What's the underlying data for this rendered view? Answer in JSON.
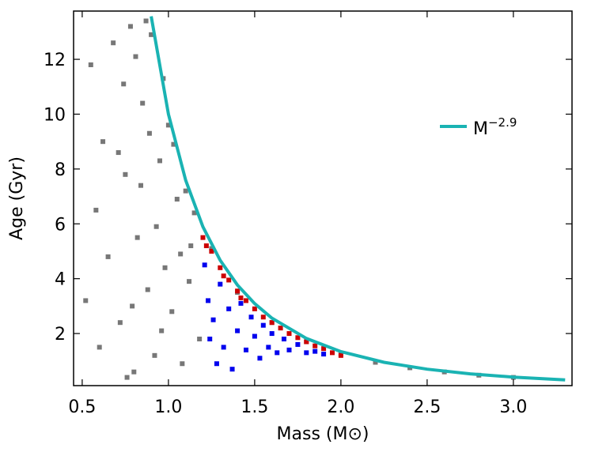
{
  "chart_data": {
    "type": "scatter",
    "xlabel": "Mass (M⊙)",
    "ylabel": "Age (Gyr)",
    "xlim": [
      0.45,
      3.34
    ],
    "ylim": [
      0.1,
      13.76
    ],
    "xticks": [
      {
        "value": 0.5,
        "label": "0.5"
      },
      {
        "value": 1.0,
        "label": "1.0"
      },
      {
        "value": 1.5,
        "label": "1.5"
      },
      {
        "value": 2.0,
        "label": "2.0"
      },
      {
        "value": 2.5,
        "label": "2.5"
      },
      {
        "value": 3.0,
        "label": "3.0"
      }
    ],
    "yticks": [
      2,
      4,
      6,
      8,
      10,
      12
    ],
    "series": [
      {
        "style": "markers",
        "color": "#777777",
        "x": [
          0.52,
          0.55,
          0.58,
          0.6,
          0.62,
          0.65,
          0.68,
          0.72,
          0.75,
          0.78,
          0.8,
          0.82,
          0.85,
          0.88,
          0.9,
          0.92,
          0.95,
          0.98,
          1.0,
          1.02,
          1.05,
          1.08,
          1.1,
          1.12,
          1.15,
          1.18,
          0.74,
          0.79,
          0.84,
          0.87,
          0.93,
          0.97,
          1.03,
          1.07,
          1.13,
          0.71,
          0.76,
          0.81,
          0.89,
          0.96,
          1.25,
          1.4,
          1.6,
          1.8,
          2.0,
          2.2,
          2.4,
          2.6,
          2.8,
          3.0
        ],
        "y": [
          3.2,
          11.8,
          6.5,
          1.5,
          9.0,
          4.8,
          12.6,
          2.4,
          7.8,
          13.2,
          0.6,
          5.5,
          10.4,
          3.6,
          12.9,
          1.2,
          8.3,
          4.4,
          9.6,
          2.8,
          6.9,
          0.9,
          7.2,
          3.9,
          6.4,
          1.8,
          11.1,
          3.0,
          7.4,
          13.4,
          5.9,
          11.3,
          8.9,
          4.9,
          5.2,
          8.6,
          0.4,
          12.1,
          9.3,
          2.1,
          5.1,
          3.5,
          2.4,
          1.7,
          1.25,
          0.95,
          0.75,
          0.6,
          0.48,
          0.4
        ]
      },
      {
        "style": "markers",
        "color": "#cc0000",
        "x": [
          1.2,
          1.25,
          1.3,
          1.35,
          1.4,
          1.45,
          1.5,
          1.55,
          1.6,
          1.65,
          1.7,
          1.75,
          1.8,
          1.85,
          1.9,
          1.95,
          2.0,
          1.22,
          1.32,
          1.42
        ],
        "y": [
          5.5,
          5.0,
          4.4,
          3.95,
          3.55,
          3.2,
          2.9,
          2.6,
          2.4,
          2.2,
          2.0,
          1.85,
          1.7,
          1.55,
          1.45,
          1.3,
          1.2,
          5.2,
          4.1,
          3.3
        ]
      },
      {
        "style": "markers",
        "color": "#0000ee",
        "x": [
          1.21,
          1.23,
          1.24,
          1.26,
          1.28,
          1.3,
          1.32,
          1.35,
          1.37,
          1.4,
          1.42,
          1.45,
          1.48,
          1.5,
          1.53,
          1.55,
          1.58,
          1.6,
          1.63,
          1.67,
          1.7,
          1.75,
          1.8,
          1.85,
          1.9
        ],
        "y": [
          4.5,
          3.2,
          1.8,
          2.5,
          0.9,
          3.8,
          1.5,
          2.9,
          0.7,
          2.1,
          3.1,
          1.4,
          2.6,
          1.9,
          1.1,
          2.3,
          1.5,
          2.0,
          1.3,
          1.8,
          1.4,
          1.6,
          1.3,
          1.35,
          1.25
        ]
      },
      {
        "style": "line",
        "color": "#1ab3b3",
        "name": "M",
        "name_superscript": "−2.9",
        "x": [
          0.9,
          1.0,
          1.1,
          1.2,
          1.3,
          1.4,
          1.5,
          1.6,
          1.8,
          2.0,
          2.25,
          2.5,
          2.75,
          3.0,
          3.3
        ],
        "y": [
          13.57,
          10,
          7.59,
          5.89,
          4.67,
          3.77,
          3.09,
          2.56,
          1.82,
          1.34,
          0.95,
          0.7,
          0.53,
          0.41,
          0.31
        ]
      }
    ]
  }
}
